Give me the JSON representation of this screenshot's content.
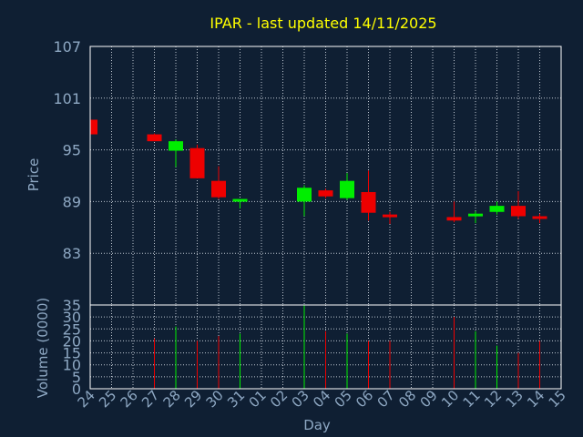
{
  "chart_data": {
    "type": "candlestick",
    "title": "IPAR - last updated 14/11/2025",
    "xlabel": "Day",
    "ylabel": "Price",
    "volume_label": "Volume (0000)",
    "grid": true,
    "price_ylim": [
      77,
      107
    ],
    "price_ticks": [
      107,
      101,
      95,
      89,
      83
    ],
    "volume_ylim": [
      0,
      35
    ],
    "volume_ticks": [
      35,
      30,
      25,
      20,
      15,
      10,
      5,
      0
    ],
    "x_labels": [
      "24",
      "25",
      "26",
      "27",
      "28",
      "29",
      "30",
      "31",
      "01",
      "02",
      "03",
      "04",
      "05",
      "06",
      "07",
      "08",
      "09",
      "10",
      "11",
      "12",
      "13",
      "14",
      "15"
    ],
    "candles": [
      {
        "day": "24",
        "open": 98.5,
        "high": 98.5,
        "low": 96.8,
        "close": 96.8,
        "volume": 0
      },
      {
        "day": "27",
        "open": 96.8,
        "high": 96.9,
        "low": 96.0,
        "close": 96.0,
        "volume": 21
      },
      {
        "day": "28",
        "open": 94.9,
        "high": 96.2,
        "low": 93.0,
        "close": 96.0,
        "volume": 26
      },
      {
        "day": "29",
        "open": 95.2,
        "high": 95.6,
        "low": 91.7,
        "close": 91.7,
        "volume": 20
      },
      {
        "day": "30",
        "open": 91.4,
        "high": 93.1,
        "low": 89.3,
        "close": 89.5,
        "volume": 22
      },
      {
        "day": "31",
        "open": 89.0,
        "high": 89.3,
        "low": 88.2,
        "close": 89.3,
        "volume": 23
      },
      {
        "day": "03",
        "open": 89.0,
        "high": 90.9,
        "low": 87.3,
        "close": 90.6,
        "volume": 35
      },
      {
        "day": "04",
        "open": 90.3,
        "high": 90.5,
        "low": 89.4,
        "close": 89.6,
        "volume": 24
      },
      {
        "day": "05",
        "open": 89.4,
        "high": 92.3,
        "low": 89.2,
        "close": 91.4,
        "volume": 23
      },
      {
        "day": "06",
        "open": 90.1,
        "high": 92.6,
        "low": 86.8,
        "close": 87.7,
        "volume": 20
      },
      {
        "day": "07",
        "open": 87.5,
        "high": 87.8,
        "low": 86.4,
        "close": 87.2,
        "volume": 20
      },
      {
        "day": "10",
        "open": 87.2,
        "high": 89.0,
        "low": 86.6,
        "close": 86.8,
        "volume": 30
      },
      {
        "day": "11",
        "open": 87.6,
        "high": 87.9,
        "low": 86.5,
        "close": 87.6,
        "volume": 24
      },
      {
        "day": "12",
        "open": 87.8,
        "high": 89.0,
        "low": 87.5,
        "close": 88.5,
        "volume": 18
      },
      {
        "day": "13",
        "open": 88.5,
        "high": 90.2,
        "low": 87.0,
        "close": 87.3,
        "volume": 15
      },
      {
        "day": "14",
        "open": 87.3,
        "high": 87.6,
        "low": 86.5,
        "close": 87.2,
        "volume": 20
      }
    ]
  },
  "colors": {
    "background": "#0f1f33",
    "axis": "#ffffff",
    "grid": "#bfc7d1",
    "label": "#8ea8c3",
    "title": "#ffff00",
    "up": "#00ee00",
    "down": "#ee0000"
  }
}
